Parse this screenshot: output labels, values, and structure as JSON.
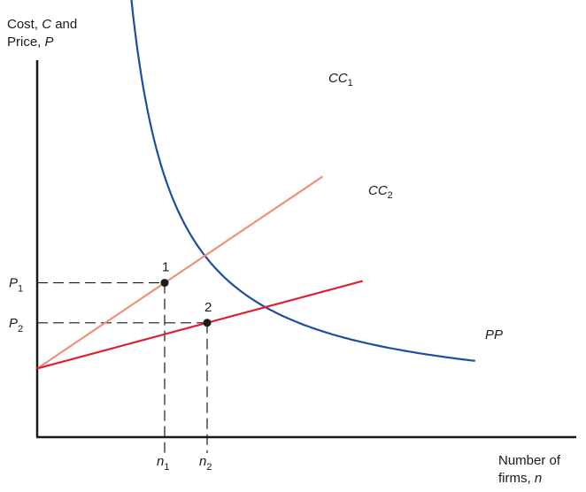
{
  "chart_data": {
    "type": "line",
    "ylabel_line1_prefix": "Cost, ",
    "ylabel_line1_var": "C",
    "ylabel_line1_suffix": " and",
    "ylabel_line2_prefix": "Price, ",
    "ylabel_line2_var": "P",
    "xlabel_line1": "Number of",
    "xlabel_line2_prefix": "firms, ",
    "xlabel_line2_var": "n",
    "colors": {
      "axis": "#1a1a1a",
      "pp": "#1f4e9c",
      "cc1": "#f0907a",
      "cc2": "#e0202e",
      "guide": "#1a1a1a",
      "point": "#1a1a1a"
    },
    "series": [
      {
        "name": "PP",
        "base": "PP",
        "sub": "",
        "kind": "hyperbola"
      },
      {
        "name": "CC1",
        "base": "CC",
        "sub": "1",
        "kind": "line",
        "y0": 2.4,
        "slope": 0.1
      },
      {
        "name": "CC2",
        "base": "CC",
        "sub": "2",
        "kind": "line",
        "y0": 2.4,
        "slope": 0.04
      }
    ],
    "points": [
      {
        "label": "1",
        "x": 30,
        "y": 5.4
      },
      {
        "label": "2",
        "x": 40,
        "y": 4.0
      }
    ],
    "x_ticks": [
      {
        "base": "n",
        "sub": "1",
        "value": 30
      },
      {
        "base": "n",
        "sub": "2",
        "value": 40
      }
    ],
    "y_ticks": [
      {
        "base": "P",
        "sub": "1",
        "value": 5.4
      },
      {
        "base": "P",
        "sub": "2",
        "value": 4.0
      }
    ]
  }
}
